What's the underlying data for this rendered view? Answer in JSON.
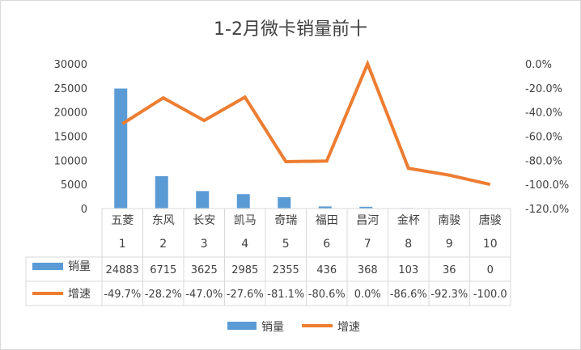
{
  "chart_data": {
    "type": "bar",
    "title": "1-2月微卡销量前十",
    "categories": [
      "五菱",
      "东风",
      "长安",
      "凯马",
      "奇瑞",
      "福田",
      "昌河",
      "金杯",
      "南骏",
      "唐骏"
    ],
    "ranks": [
      "1",
      "2",
      "3",
      "4",
      "5",
      "6",
      "7",
      "8",
      "9",
      "10"
    ],
    "series": [
      {
        "name": "销量",
        "kind": "bar",
        "axis": "left",
        "color": "#5B9BD5",
        "values": [
          24883,
          6715,
          3625,
          2985,
          2355,
          436,
          368,
          103,
          36,
          0
        ]
      },
      {
        "name": "增速",
        "kind": "line",
        "axis": "right",
        "color": "#ED7D31",
        "values": [
          -49.7,
          -28.2,
          -47.0,
          -27.6,
          -81.1,
          -80.6,
          0.0,
          -86.6,
          -92.3,
          -100.0
        ]
      }
    ],
    "table_rows": {
      "sales": [
        "24883",
        "6715",
        "3625",
        "2985",
        "2355",
        "436",
        "368",
        "103",
        "36",
        "0"
      ],
      "growth": [
        "-49.7%",
        "-28.2%",
        "-47.0%",
        "-27.6%",
        "-81.1%",
        "-80.6%",
        "0.0%",
        "-86.6%",
        "-92.3%",
        "-100.0"
      ]
    },
    "y_left": {
      "min": 0,
      "max": 30000,
      "ticks": [
        "0",
        "5000",
        "10000",
        "15000",
        "20000",
        "25000",
        "30000"
      ],
      "tick_values": [
        0,
        5000,
        10000,
        15000,
        20000,
        25000,
        30000
      ]
    },
    "y_right": {
      "min": -120,
      "max": 0,
      "ticks": [
        "0.0%",
        "-20.0%",
        "-40.0%",
        "-60.0%",
        "-80.0%",
        "-100.0%",
        "-120.0%"
      ],
      "tick_values": [
        0,
        -20,
        -40,
        -60,
        -80,
        -100,
        -120
      ]
    },
    "legend": {
      "position": "bottom",
      "items": [
        {
          "label": "销量",
          "color": "#5B9BD5"
        },
        {
          "label": "增速",
          "color": "#ED7D31"
        }
      ]
    }
  }
}
